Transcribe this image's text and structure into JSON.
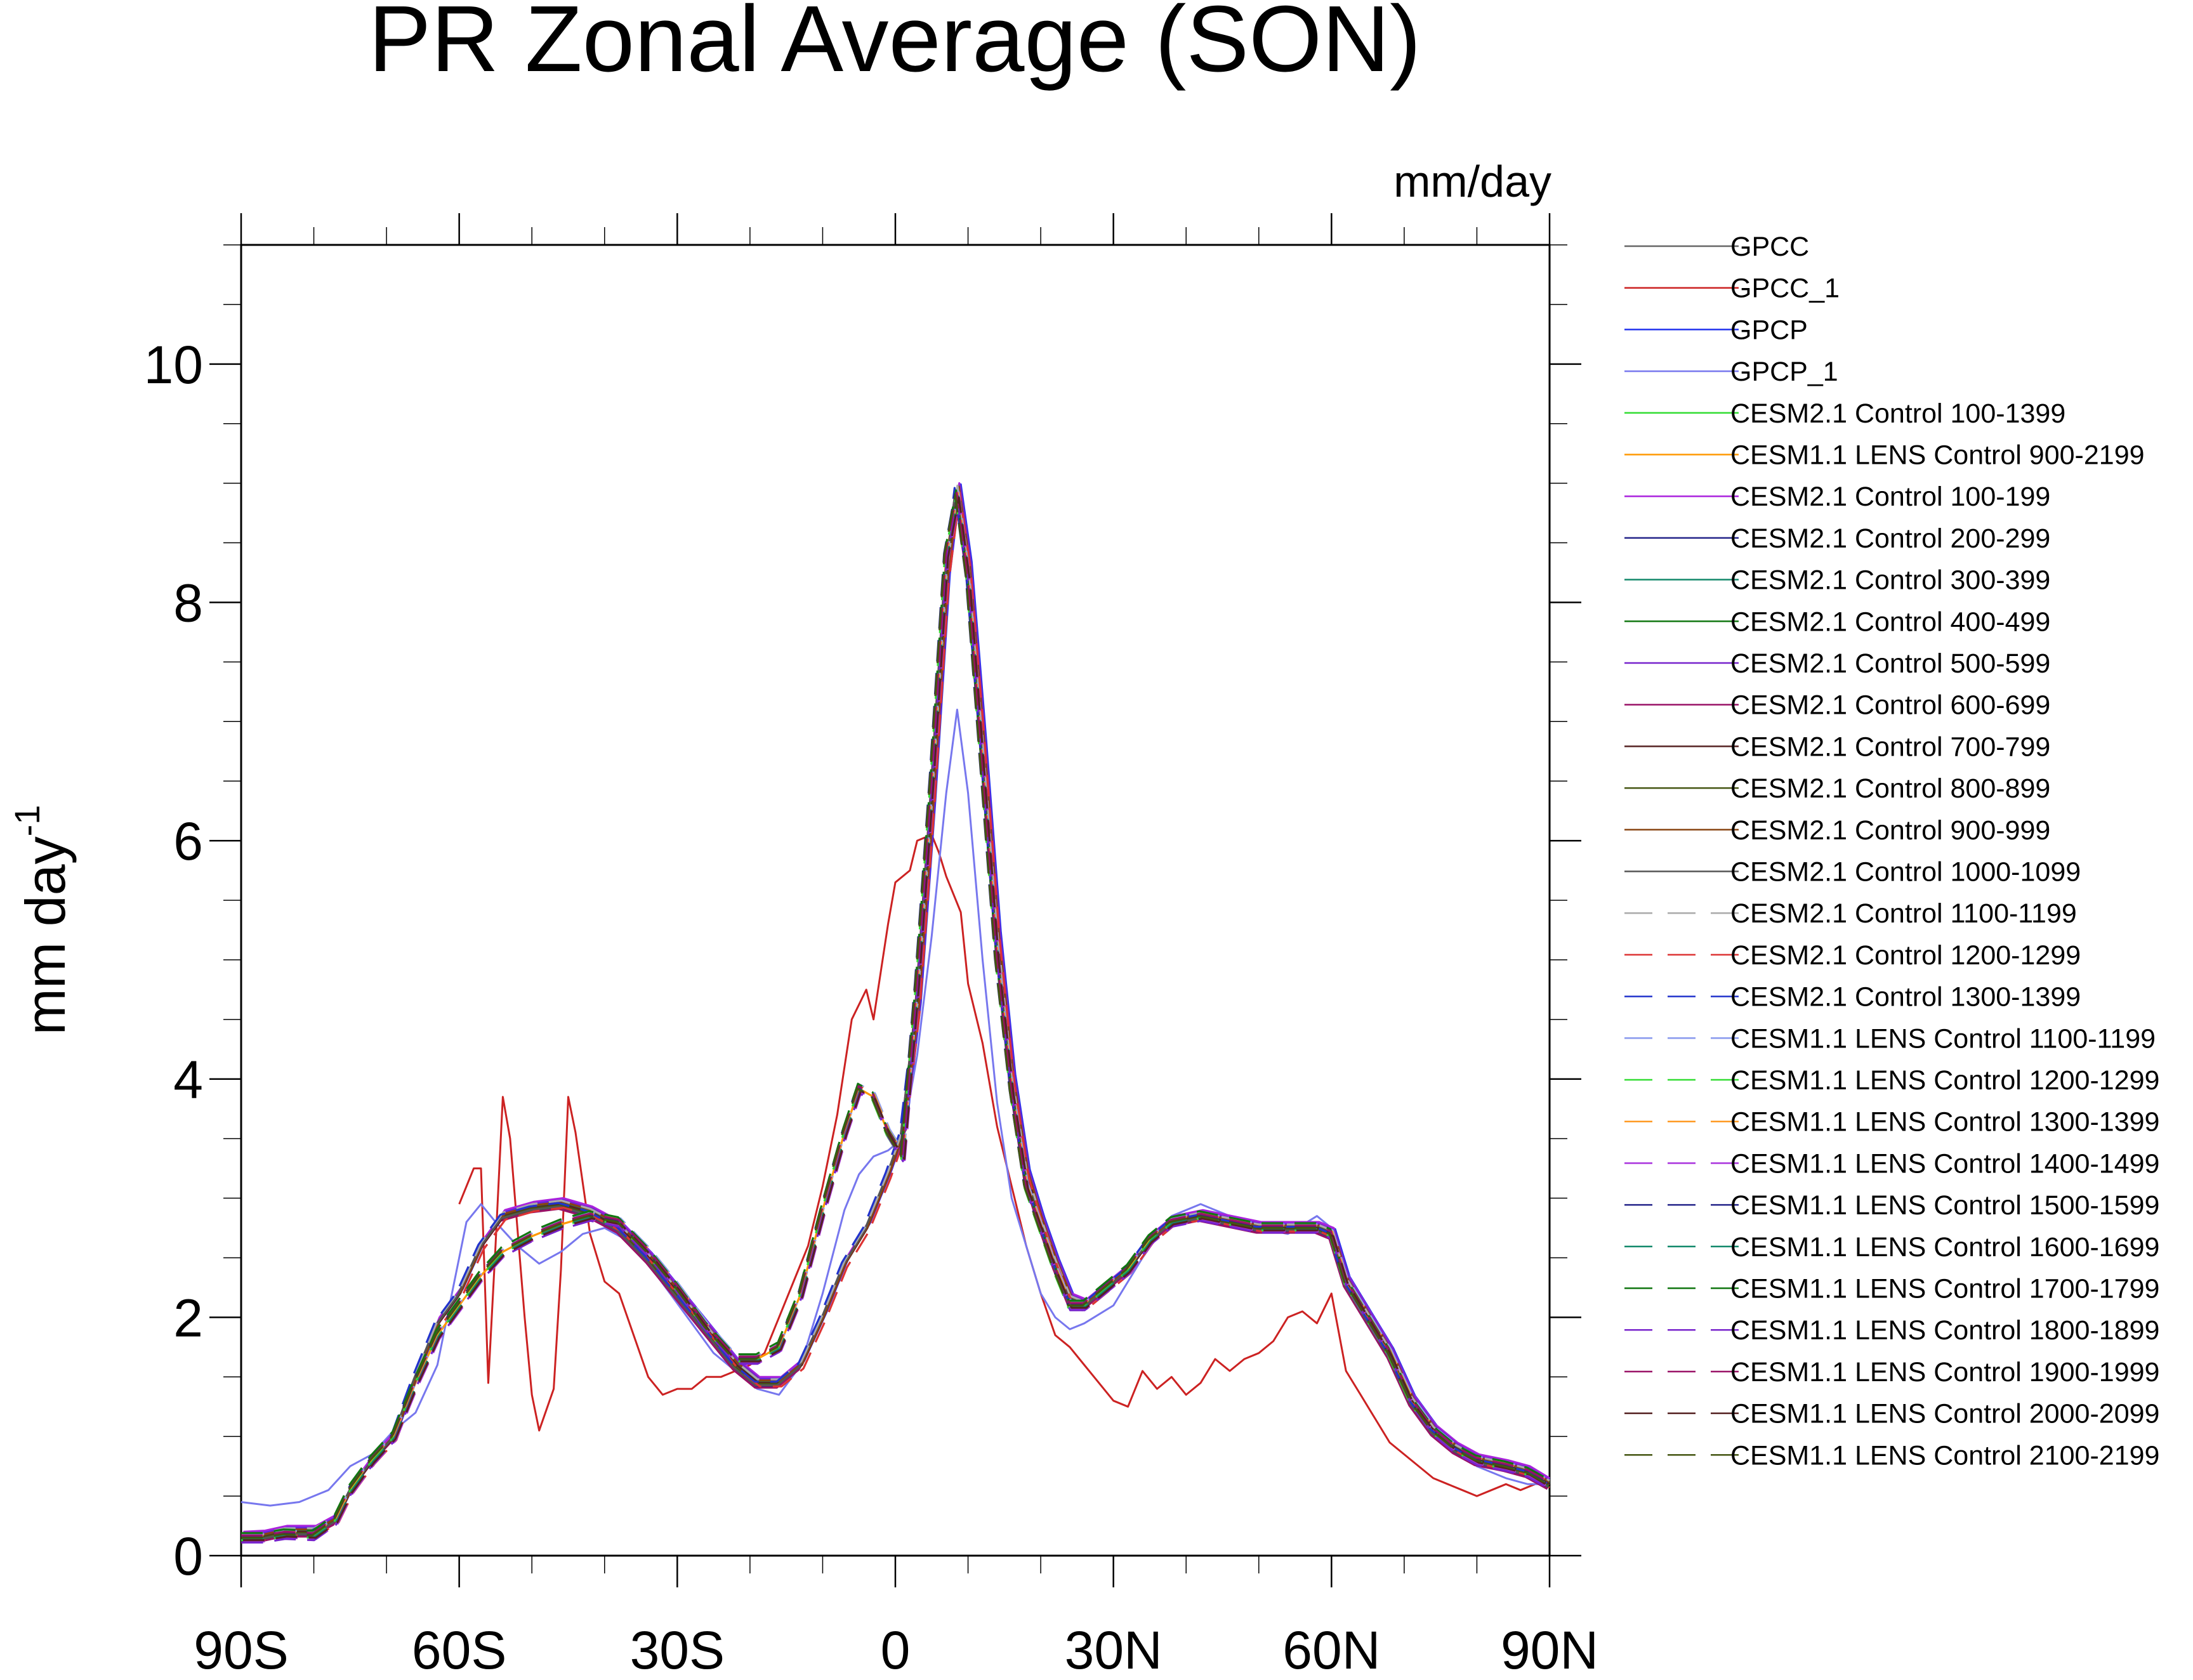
{
  "chart_data": {
    "type": "line",
    "title": "PR Zonal Average (SON)",
    "units": "mm/day",
    "ylabel": "mm day",
    "ylabel_exponent": "-1",
    "xlim": [
      -90,
      90
    ],
    "ylim": [
      0,
      11
    ],
    "xticks": [
      -90,
      -60,
      -30,
      0,
      30,
      60,
      90
    ],
    "xtick_labels": [
      "90S",
      "60S",
      "30S",
      "0",
      "30N",
      "60N",
      "90N"
    ],
    "yticks": [
      0,
      2,
      4,
      6,
      8,
      10
    ],
    "ytick_labels": [
      "0",
      "2",
      "4",
      "6",
      "8",
      "10"
    ],
    "legend_position": "right",
    "series": [
      {
        "name": "GPCC",
        "color": "#666666",
        "dash": false,
        "role": "model",
        "offset": 0.0,
        "dx": 0.0
      },
      {
        "name": "GPCC_1",
        "color": "#cc2222",
        "dash": false,
        "role": "gpcc1",
        "offset": 0.0,
        "dx": 0.0
      },
      {
        "name": "GPCP",
        "color": "#2233ee",
        "dash": false,
        "role": "model",
        "offset": 0.04,
        "dx": 0.5
      },
      {
        "name": "GPCP_1",
        "color": "#7777ee",
        "dash": false,
        "role": "gpcp1",
        "offset": 0.0,
        "dx": 0.0
      },
      {
        "name": "CESM2.1 Control 100-1399",
        "color": "#33dd33",
        "dash": false,
        "role": "model",
        "offset": 0.02,
        "dx": 0.2
      },
      {
        "name": "CESM1.1 LENS Control 900-2199",
        "color": "#ff9900",
        "dash": false,
        "role": "lens",
        "offset": 0.0,
        "dx": 0.0
      },
      {
        "name": "CESM2.1 Control 100-199",
        "color": "#aa22dd",
        "dash": false,
        "role": "model",
        "offset": 0.05,
        "dx": 0.3
      },
      {
        "name": "CESM2.1 Control 200-299",
        "color": "#222288",
        "dash": false,
        "role": "model",
        "offset": -0.03,
        "dx": -0.2
      },
      {
        "name": "CESM2.1 Control 300-399",
        "color": "#11886a",
        "dash": false,
        "role": "model",
        "offset": 0.01,
        "dx": 0.1
      },
      {
        "name": "CESM2.1 Control 400-499",
        "color": "#117711",
        "dash": false,
        "role": "model",
        "offset": -0.02,
        "dx": -0.1
      },
      {
        "name": "CESM2.1 Control 500-599",
        "color": "#7722cc",
        "dash": false,
        "role": "model",
        "offset": 0.03,
        "dx": 0.4
      },
      {
        "name": "CESM2.1 Control 600-699",
        "color": "#991166",
        "dash": false,
        "role": "model",
        "offset": -0.04,
        "dx": -0.3
      },
      {
        "name": "CESM2.1 Control 700-799",
        "color": "#552222",
        "dash": false,
        "role": "model",
        "offset": 0.0,
        "dx": 0.15
      },
      {
        "name": "CESM2.1 Control 800-899",
        "color": "#445511",
        "dash": false,
        "role": "model",
        "offset": -0.01,
        "dx": -0.15
      },
      {
        "name": "CESM2.1 Control 900-999",
        "color": "#884411",
        "dash": false,
        "role": "model",
        "offset": 0.02,
        "dx": 0.25
      },
      {
        "name": "CESM2.1 Control 1000-1099",
        "color": "#555555",
        "dash": false,
        "role": "model",
        "offset": -0.02,
        "dx": -0.25
      },
      {
        "name": "CESM2.1 Control 1100-1199",
        "color": "#aaaaaa",
        "dash": true,
        "role": "model",
        "offset": 0.03,
        "dx": 0.05
      },
      {
        "name": "CESM2.1 Control 1200-1299",
        "color": "#dd3333",
        "dash": true,
        "role": "model",
        "offset": -0.03,
        "dx": 0.35
      },
      {
        "name": "CESM2.1 Control 1300-1399",
        "color": "#2233cc",
        "dash": true,
        "role": "model",
        "offset": 0.01,
        "dx": -0.35
      },
      {
        "name": "CESM1.1 LENS Control 1100-1199",
        "color": "#8899ee",
        "dash": true,
        "role": "lens",
        "offset": 0.03,
        "dx": 0.2
      },
      {
        "name": "CESM1.1 LENS Control 1200-1299",
        "color": "#33dd33",
        "dash": true,
        "role": "lens",
        "offset": -0.02,
        "dx": -0.2
      },
      {
        "name": "CESM1.1 LENS Control 1300-1399",
        "color": "#ff9922",
        "dash": true,
        "role": "lens",
        "offset": 0.02,
        "dx": 0.1
      },
      {
        "name": "CESM1.1 LENS Control 1400-1499",
        "color": "#aa33dd",
        "dash": true,
        "role": "lens",
        "offset": -0.03,
        "dx": 0.3
      },
      {
        "name": "CESM1.1 LENS Control 1500-1599",
        "color": "#222288",
        "dash": true,
        "role": "lens",
        "offset": 0.01,
        "dx": -0.3
      },
      {
        "name": "CESM1.1 LENS Control 1600-1699",
        "color": "#11886a",
        "dash": true,
        "role": "lens",
        "offset": -0.01,
        "dx": 0.15
      },
      {
        "name": "CESM1.1 LENS Control 1700-1799",
        "color": "#117711",
        "dash": true,
        "role": "lens",
        "offset": 0.04,
        "dx": -0.15
      },
      {
        "name": "CESM1.1 LENS Control 1800-1899",
        "color": "#7722cc",
        "dash": true,
        "role": "lens",
        "offset": -0.04,
        "dx": 0.05
      },
      {
        "name": "CESM1.1 LENS Control 1900-1999",
        "color": "#991166",
        "dash": true,
        "role": "lens",
        "offset": 0.02,
        "dx": -0.05
      },
      {
        "name": "CESM1.1 LENS Control 2000-2099",
        "color": "#552222",
        "dash": true,
        "role": "lens",
        "offset": -0.02,
        "dx": 0.25
      },
      {
        "name": "CESM1.1 LENS Control 2100-2199",
        "color": "#445511",
        "dash": true,
        "role": "lens",
        "offset": 0.0,
        "dx": -0.25
      }
    ],
    "profiles": {
      "model": [
        [
          -90,
          0.15
        ],
        [
          -87,
          0.16
        ],
        [
          -84,
          0.2
        ],
        [
          -80,
          0.2
        ],
        [
          -77,
          0.3
        ],
        [
          -75,
          0.55
        ],
        [
          -72,
          0.8
        ],
        [
          -69,
          1.0
        ],
        [
          -66,
          1.5
        ],
        [
          -63,
          1.95
        ],
        [
          -60,
          2.2
        ],
        [
          -57,
          2.6
        ],
        [
          -54,
          2.85
        ],
        [
          -50,
          2.92
        ],
        [
          -46,
          2.95
        ],
        [
          -42,
          2.88
        ],
        [
          -38,
          2.75
        ],
        [
          -34,
          2.5
        ],
        [
          -30,
          2.2
        ],
        [
          -26,
          1.9
        ],
        [
          -22,
          1.6
        ],
        [
          -19,
          1.45
        ],
        [
          -16,
          1.45
        ],
        [
          -13,
          1.6
        ],
        [
          -10,
          2.0
        ],
        [
          -7,
          2.45
        ],
        [
          -4,
          2.75
        ],
        [
          -1,
          3.2
        ],
        [
          1,
          3.55
        ],
        [
          3,
          4.6
        ],
        [
          5,
          6.3
        ],
        [
          7,
          8.2
        ],
        [
          8.5,
          8.95
        ],
        [
          10,
          8.3
        ],
        [
          12,
          6.8
        ],
        [
          14,
          5.2
        ],
        [
          16,
          4.0
        ],
        [
          18,
          3.2
        ],
        [
          20,
          2.8
        ],
        [
          22,
          2.45
        ],
        [
          24,
          2.15
        ],
        [
          26,
          2.1
        ],
        [
          28,
          2.2
        ],
        [
          30,
          2.3
        ],
        [
          32,
          2.4
        ],
        [
          35,
          2.65
        ],
        [
          38,
          2.8
        ],
        [
          42,
          2.85
        ],
        [
          46,
          2.8
        ],
        [
          50,
          2.75
        ],
        [
          54,
          2.75
        ],
        [
          58,
          2.75
        ],
        [
          60,
          2.7
        ],
        [
          62,
          2.3
        ],
        [
          65,
          2.0
        ],
        [
          68,
          1.7
        ],
        [
          71,
          1.3
        ],
        [
          74,
          1.05
        ],
        [
          77,
          0.9
        ],
        [
          80,
          0.8
        ],
        [
          84,
          0.75
        ],
        [
          87,
          0.7
        ],
        [
          90,
          0.6
        ]
      ],
      "lens": [
        [
          -90,
          0.15
        ],
        [
          -87,
          0.15
        ],
        [
          -84,
          0.18
        ],
        [
          -80,
          0.17
        ],
        [
          -77,
          0.3
        ],
        [
          -75,
          0.55
        ],
        [
          -72,
          0.8
        ],
        [
          -69,
          1.0
        ],
        [
          -66,
          1.45
        ],
        [
          -63,
          1.85
        ],
        [
          -60,
          2.1
        ],
        [
          -57,
          2.35
        ],
        [
          -54,
          2.55
        ],
        [
          -50,
          2.68
        ],
        [
          -46,
          2.78
        ],
        [
          -42,
          2.85
        ],
        [
          -38,
          2.8
        ],
        [
          -34,
          2.55
        ],
        [
          -30,
          2.25
        ],
        [
          -26,
          1.92
        ],
        [
          -22,
          1.65
        ],
        [
          -19,
          1.65
        ],
        [
          -16,
          1.75
        ],
        [
          -13,
          2.2
        ],
        [
          -10,
          2.9
        ],
        [
          -7,
          3.55
        ],
        [
          -5,
          3.92
        ],
        [
          -3,
          3.85
        ],
        [
          -1,
          3.55
        ],
        [
          1,
          3.35
        ],
        [
          3,
          4.8
        ],
        [
          5,
          6.5
        ],
        [
          7,
          8.4
        ],
        [
          8.5,
          8.9
        ],
        [
          10,
          8.2
        ],
        [
          12,
          6.6
        ],
        [
          14,
          5.0
        ],
        [
          16,
          3.9
        ],
        [
          18,
          3.1
        ],
        [
          20,
          2.75
        ],
        [
          22,
          2.4
        ],
        [
          24,
          2.1
        ],
        [
          26,
          2.1
        ],
        [
          28,
          2.2
        ],
        [
          30,
          2.3
        ],
        [
          32,
          2.4
        ],
        [
          35,
          2.65
        ],
        [
          38,
          2.8
        ],
        [
          42,
          2.85
        ],
        [
          46,
          2.8
        ],
        [
          50,
          2.75
        ],
        [
          54,
          2.75
        ],
        [
          58,
          2.75
        ],
        [
          60,
          2.7
        ],
        [
          62,
          2.3
        ],
        [
          65,
          2.0
        ],
        [
          68,
          1.7
        ],
        [
          71,
          1.3
        ],
        [
          74,
          1.05
        ],
        [
          77,
          0.9
        ],
        [
          80,
          0.8
        ],
        [
          84,
          0.75
        ],
        [
          87,
          0.7
        ],
        [
          90,
          0.6
        ]
      ],
      "gpcc1": [
        [
          -60,
          2.95
        ],
        [
          -58,
          3.25
        ],
        [
          -57,
          3.25
        ],
        [
          -56,
          1.45
        ],
        [
          -55,
          2.6
        ],
        [
          -54,
          3.85
        ],
        [
          -53,
          3.5
        ],
        [
          -51,
          2.0
        ],
        [
          -50,
          1.35
        ],
        [
          -49,
          1.05
        ],
        [
          -47,
          1.4
        ],
        [
          -46,
          2.4
        ],
        [
          -45,
          3.85
        ],
        [
          -44,
          3.55
        ],
        [
          -42,
          2.7
        ],
        [
          -40,
          2.3
        ],
        [
          -38,
          2.2
        ],
        [
          -36,
          1.85
        ],
        [
          -34,
          1.5
        ],
        [
          -32,
          1.35
        ],
        [
          -30,
          1.4
        ],
        [
          -28,
          1.4
        ],
        [
          -26,
          1.5
        ],
        [
          -24,
          1.5
        ],
        [
          -22,
          1.55
        ],
        [
          -20,
          1.6
        ],
        [
          -18,
          1.7
        ],
        [
          -16,
          2.0
        ],
        [
          -14,
          2.3
        ],
        [
          -12,
          2.6
        ],
        [
          -10,
          3.1
        ],
        [
          -8,
          3.7
        ],
        [
          -6,
          4.5
        ],
        [
          -4,
          4.75
        ],
        [
          -3,
          4.5
        ],
        [
          -1,
          5.3
        ],
        [
          0,
          5.65
        ],
        [
          2,
          5.75
        ],
        [
          3,
          6.0
        ],
        [
          5,
          6.05
        ],
        [
          6,
          5.9
        ],
        [
          7,
          5.7
        ],
        [
          9,
          5.4
        ],
        [
          10,
          4.8
        ],
        [
          12,
          4.3
        ],
        [
          14,
          3.6
        ],
        [
          16,
          3.1
        ],
        [
          18,
          2.6
        ],
        [
          20,
          2.2
        ],
        [
          22,
          1.85
        ],
        [
          24,
          1.75
        ],
        [
          26,
          1.6
        ],
        [
          28,
          1.45
        ],
        [
          30,
          1.3
        ],
        [
          32,
          1.25
        ],
        [
          34,
          1.55
        ],
        [
          36,
          1.4
        ],
        [
          38,
          1.5
        ],
        [
          40,
          1.35
        ],
        [
          42,
          1.45
        ],
        [
          44,
          1.65
        ],
        [
          46,
          1.55
        ],
        [
          48,
          1.65
        ],
        [
          50,
          1.7
        ],
        [
          52,
          1.8
        ],
        [
          54,
          2.0
        ],
        [
          56,
          2.05
        ],
        [
          58,
          1.95
        ],
        [
          60,
          2.2
        ],
        [
          62,
          1.55
        ],
        [
          64,
          1.35
        ],
        [
          66,
          1.15
        ],
        [
          68,
          0.95
        ],
        [
          70,
          0.85
        ],
        [
          72,
          0.75
        ],
        [
          74,
          0.65
        ],
        [
          76,
          0.6
        ],
        [
          78,
          0.55
        ],
        [
          80,
          0.5
        ],
        [
          82,
          0.55
        ],
        [
          84,
          0.6
        ],
        [
          86,
          0.55
        ],
        [
          88,
          0.6
        ]
      ],
      "gpcp1": [
        [
          -90,
          0.45
        ],
        [
          -86,
          0.42
        ],
        [
          -82,
          0.45
        ],
        [
          -78,
          0.55
        ],
        [
          -75,
          0.75
        ],
        [
          -72,
          0.85
        ],
        [
          -69,
          1.05
        ],
        [
          -66,
          1.2
        ],
        [
          -63,
          1.6
        ],
        [
          -61,
          2.2
        ],
        [
          -59,
          2.8
        ],
        [
          -57,
          2.95
        ],
        [
          -55,
          2.8
        ],
        [
          -52,
          2.6
        ],
        [
          -49,
          2.45
        ],
        [
          -46,
          2.55
        ],
        [
          -43,
          2.7
        ],
        [
          -40,
          2.75
        ],
        [
          -37,
          2.65
        ],
        [
          -34,
          2.45
        ],
        [
          -31,
          2.2
        ],
        [
          -28,
          1.95
        ],
        [
          -25,
          1.7
        ],
        [
          -22,
          1.55
        ],
        [
          -19,
          1.4
        ],
        [
          -16,
          1.35
        ],
        [
          -13,
          1.6
        ],
        [
          -10,
          2.2
        ],
        [
          -7,
          2.9
        ],
        [
          -5,
          3.2
        ],
        [
          -3,
          3.35
        ],
        [
          -1,
          3.4
        ],
        [
          1,
          3.5
        ],
        [
          3,
          4.2
        ],
        [
          5,
          5.2
        ],
        [
          7,
          6.4
        ],
        [
          8.5,
          7.1
        ],
        [
          10,
          6.4
        ],
        [
          12,
          5.0
        ],
        [
          14,
          3.8
        ],
        [
          16,
          3.0
        ],
        [
          18,
          2.6
        ],
        [
          20,
          2.2
        ],
        [
          22,
          2.0
        ],
        [
          24,
          1.9
        ],
        [
          26,
          1.95
        ],
        [
          30,
          2.1
        ],
        [
          34,
          2.5
        ],
        [
          38,
          2.85
        ],
        [
          42,
          2.95
        ],
        [
          46,
          2.85
        ],
        [
          50,
          2.75
        ],
        [
          54,
          2.7
        ],
        [
          58,
          2.85
        ],
        [
          60,
          2.75
        ],
        [
          62,
          2.4
        ],
        [
          65,
          2.0
        ],
        [
          68,
          1.7
        ],
        [
          71,
          1.35
        ],
        [
          74,
          1.1
        ],
        [
          77,
          0.9
        ],
        [
          80,
          0.75
        ],
        [
          84,
          0.65
        ],
        [
          87,
          0.6
        ],
        [
          90,
          0.6
        ]
      ]
    }
  }
}
